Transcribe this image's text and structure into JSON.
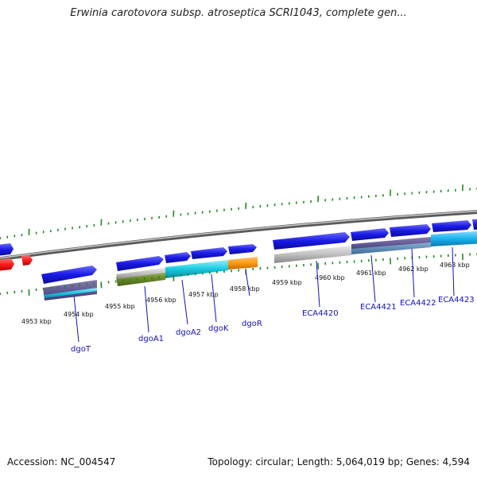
{
  "title": "Erwinia carotovora subsp. atroseptica SCRI1043, complete gen...",
  "footer": {
    "accession": "Accession: NC_004547",
    "summary": "Topology: circular; Length: 5,064,019 bp; Genes: 4,594"
  },
  "kbp_labels": [
    "4953 kbp",
    "4954 kbp",
    "4955 kbp",
    "4956 kbp",
    "4957 kbp",
    "4958 kbp",
    "4959 kbp",
    "4960 kbp",
    "4961 kbp",
    "4962 kbp",
    "4963 kbp"
  ],
  "genes": [
    {
      "name": "dgoT"
    },
    {
      "name": "dgoA1"
    },
    {
      "name": "dgoA2"
    },
    {
      "name": "dgoK"
    },
    {
      "name": "dgoR"
    },
    {
      "name": "ECA4420"
    },
    {
      "name": "ECA4421"
    },
    {
      "name": "ECA4422"
    },
    {
      "name": "ECA4423"
    }
  ],
  "colors": {
    "backbone": "#8c8c8c",
    "forward_gene": "#1a1ae6",
    "reverse_gene": "#ff1a1a",
    "ticks": "#1f8a1f",
    "label": "#1010c0"
  }
}
